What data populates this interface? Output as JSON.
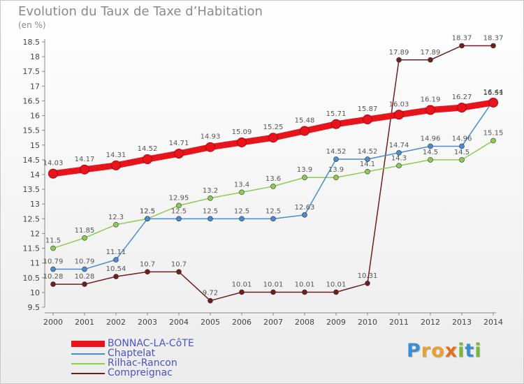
{
  "title": "Evolution du Taux de Taxe d’Habitation",
  "unit": "(en %)",
  "logo": {
    "text": "Proxiti",
    "letters": [
      "P",
      "r",
      "o",
      "x",
      "i",
      "t",
      "i"
    ],
    "colors": [
      "#3a8fd0",
      "#e8a030",
      "#e8a030",
      "#e07020",
      "#78b838",
      "#3a8fd0",
      "#78b838"
    ]
  },
  "chart_data": {
    "type": "line",
    "x": [
      2000,
      2001,
      2002,
      2003,
      2004,
      2005,
      2006,
      2007,
      2008,
      2009,
      2010,
      2011,
      2012,
      2013,
      2014
    ],
    "ylim": [
      9.5,
      18.5
    ],
    "yticks": [
      "9.5",
      "10",
      "10.5",
      "11",
      "11.5",
      "12",
      "12.5",
      "13",
      "13.5",
      "14",
      "14.5",
      "15",
      "15.5",
      "16",
      "16.5",
      "17",
      "17.5",
      "18",
      "18.5"
    ],
    "grid": false,
    "legend_position": "bottom-left",
    "series": [
      {
        "name": "BONNAC-LA-CôTE",
        "color": "#e8141c",
        "values": [
          14.03,
          14.17,
          14.31,
          14.52,
          14.71,
          14.93,
          15.09,
          15.25,
          15.48,
          15.71,
          15.87,
          16.03,
          16.19,
          16.27,
          16.44
        ],
        "labels": [
          "14.03",
          "14.17",
          "14.31",
          "14.52",
          "14.71",
          "14.93",
          "15.09",
          "15.25",
          "15.48",
          "15.71",
          "15.87",
          "16.03",
          "16.19",
          "16.27",
          "16.44"
        ]
      },
      {
        "name": "Chaptelat",
        "color": "#4a8cd0",
        "values": [
          10.79,
          10.79,
          11.11,
          12.5,
          12.5,
          12.5,
          12.5,
          12.5,
          12.63,
          14.52,
          14.52,
          14.74,
          14.96,
          14.96,
          16.51
        ],
        "labels": [
          "10.79",
          "10.79",
          "11.11",
          "12.5",
          "12.5",
          "12.5",
          "12.5",
          "12.5",
          "12.63",
          "14.52",
          "14.52",
          "14.74",
          "14.96",
          "14.96",
          "16.51"
        ]
      },
      {
        "name": "Rilhac-Rancon",
        "color": "#8ccc50",
        "values": [
          11.5,
          11.85,
          12.3,
          12.5,
          12.95,
          13.2,
          13.4,
          13.6,
          13.9,
          13.9,
          14.1,
          14.3,
          14.5,
          14.5,
          15.15
        ],
        "labels": [
          "11.5",
          "11.85",
          "12.3",
          "12.5",
          "12.95",
          "13.2",
          "13.4",
          "13.6",
          "13.9",
          "13.9",
          "14.1",
          "14.3",
          "14.5",
          "14.5",
          "15.15"
        ]
      },
      {
        "name": "Compreignac",
        "color": "#6e1e1e",
        "values": [
          10.28,
          10.28,
          10.54,
          10.7,
          10.7,
          9.72,
          10.01,
          10.01,
          10.01,
          10.01,
          10.31,
          17.89,
          17.89,
          18.37,
          18.37
        ],
        "labels": [
          "10.28",
          "10.28",
          "10.54",
          "10.7",
          "10.7",
          "9.72",
          "10.01",
          "10.01",
          "10.01",
          "10.01",
          "10.31",
          "17.89",
          "17.89",
          "18.37",
          "18.37"
        ]
      }
    ]
  }
}
